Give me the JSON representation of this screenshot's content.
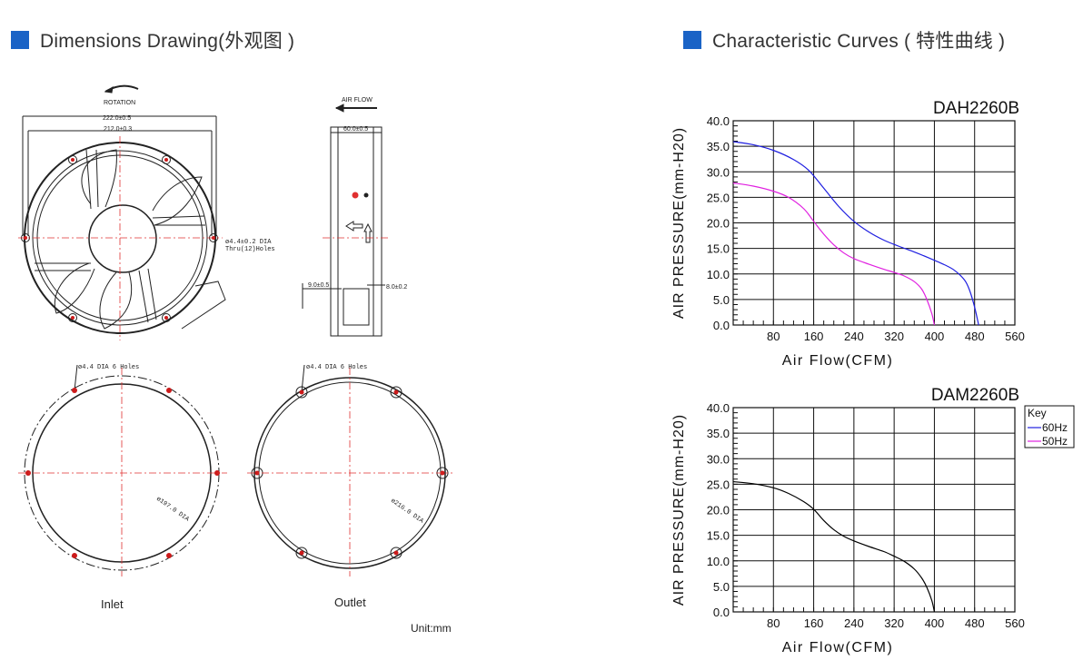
{
  "left_header": {
    "title": "Dimensions Drawing(外观图 )"
  },
  "right_header": {
    "title": "Characteristic Curves ( 特性曲线 )"
  },
  "drawing": {
    "rotation": "ROTATION",
    "air_flow": "AIR FLOW",
    "dim_222": "222.0±0.5",
    "dim_212": "212.0±0.3",
    "dim_60": "60.0±0.5",
    "hole_1": "ø4.4±0.2 DIA",
    "hole_2": "Thru(12)Holes",
    "dim_9": "9.0±0.5",
    "dim_8": "8.0±0.2",
    "inlet_holes": "ø4.4 DIA 6 Holes",
    "outlet_holes": "ø4.4 DIA 6 Holes",
    "inlet_dia": "ø197.0 DIA",
    "outlet_dia": "ø216.0 DIA",
    "inlet_label": "Inlet",
    "outlet_label": "Outlet",
    "unit": "Unit:mm"
  },
  "legend": {
    "title": "Key",
    "items": [
      "60Hz",
      "50Hz"
    ]
  },
  "colors": {
    "accent": "#1a63c6",
    "hz60": "#1f1fe0",
    "hz50": "#e020e0",
    "single": "#000000"
  },
  "chart_data": [
    {
      "type": "line",
      "title": "DAH2260B",
      "xlabel": "Air Flow(CFM)",
      "ylabel": "AIR PRESSURE(mm-H20)",
      "xlim": [
        0,
        560
      ],
      "ylim": [
        0,
        40
      ],
      "xticks": [
        "80",
        "160",
        "240",
        "320",
        "400",
        "480",
        "560"
      ],
      "yticks": [
        "0.0",
        "5.0",
        "10.0",
        "15.0",
        "20.0",
        "25.0",
        "30.0",
        "35.0",
        "40.0"
      ],
      "grid": true,
      "series": [
        {
          "name": "60Hz",
          "color": "#1f1fe0",
          "points": [
            [
              0,
              35.9
            ],
            [
              40,
              35.3
            ],
            [
              80,
              34.2
            ],
            [
              120,
              32.4
            ],
            [
              150,
              30.3
            ],
            [
              180,
              26.8
            ],
            [
              210,
              23.2
            ],
            [
              240,
              20.3
            ],
            [
              270,
              18.2
            ],
            [
              300,
              16.6
            ],
            [
              330,
              15.4
            ],
            [
              360,
              14.3
            ],
            [
              390,
              13.1
            ],
            [
              420,
              11.8
            ],
            [
              440,
              10.7
            ],
            [
              460,
              8.8
            ],
            [
              470,
              6.8
            ],
            [
              480,
              3.5
            ],
            [
              488,
              0
            ]
          ]
        },
        {
          "name": "50Hz",
          "color": "#e020e0",
          "points": [
            [
              0,
              27.8
            ],
            [
              40,
              27.2
            ],
            [
              80,
              26.2
            ],
            [
              110,
              25
            ],
            [
              140,
              22.8
            ],
            [
              160,
              20.3
            ],
            [
              180,
              17.8
            ],
            [
              200,
              15.7
            ],
            [
              220,
              14.1
            ],
            [
              240,
              13
            ],
            [
              270,
              11.9
            ],
            [
              300,
              10.9
            ],
            [
              320,
              10.3
            ],
            [
              340,
              9.6
            ],
            [
              360,
              8.5
            ],
            [
              375,
              7
            ],
            [
              385,
              5
            ],
            [
              395,
              2.2
            ],
            [
              400,
              0
            ]
          ]
        }
      ]
    },
    {
      "type": "line",
      "title": "DAM2260B",
      "xlabel": "Air Flow(CFM)",
      "ylabel": "AIR PRESSURE(mm-H20)",
      "xlim": [
        0,
        560
      ],
      "ylim": [
        0,
        40
      ],
      "xticks": [
        "80",
        "160",
        "240",
        "320",
        "400",
        "480",
        "560"
      ],
      "yticks": [
        "0.0",
        "5.0",
        "10.0",
        "15.0",
        "20.0",
        "25.0",
        "30.0",
        "35.0",
        "40.0"
      ],
      "grid": true,
      "series": [
        {
          "color": "#000000",
          "points": [
            [
              0,
              25.5
            ],
            [
              40,
              25.1
            ],
            [
              80,
              24.3
            ],
            [
              110,
              23.2
            ],
            [
              140,
              21.6
            ],
            [
              160,
              20.1
            ],
            [
              180,
              17.9
            ],
            [
              200,
              16.1
            ],
            [
              220,
              14.8
            ],
            [
              240,
              13.9
            ],
            [
              270,
              12.8
            ],
            [
              300,
              11.8
            ],
            [
              320,
              10.9
            ],
            [
              340,
              9.9
            ],
            [
              360,
              8.4
            ],
            [
              375,
              6.6
            ],
            [
              385,
              4.8
            ],
            [
              395,
              2.2
            ],
            [
              400,
              0
            ]
          ]
        }
      ]
    }
  ]
}
